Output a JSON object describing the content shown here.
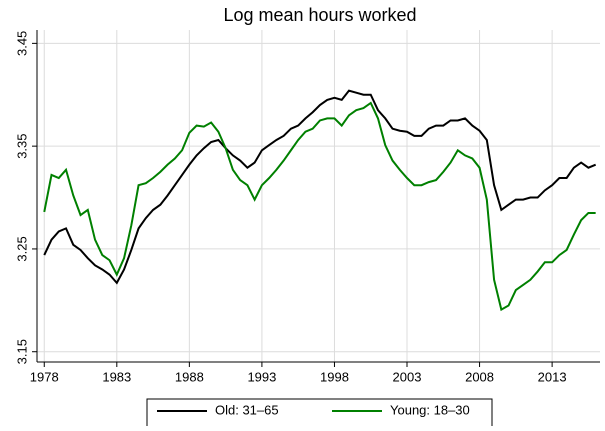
{
  "chart_data": {
    "type": "line",
    "title": "Log mean hours worked",
    "x": [
      1978,
      1978.5,
      1979,
      1979.5,
      1980,
      1980.5,
      1981,
      1981.5,
      1982,
      1982.5,
      1983,
      1983.5,
      1984,
      1984.5,
      1985,
      1985.5,
      1986,
      1986.5,
      1987,
      1987.5,
      1988,
      1988.5,
      1989,
      1989.5,
      1990,
      1990.5,
      1991,
      1991.5,
      1992,
      1992.5,
      1993,
      1993.5,
      1994,
      1994.5,
      1995,
      1995.5,
      1996,
      1996.5,
      1997,
      1997.5,
      1998,
      1998.5,
      1999,
      1999.5,
      2000,
      2000.5,
      2001,
      2001.5,
      2002,
      2002.5,
      2003,
      2003.5,
      2004,
      2004.5,
      2005,
      2005.5,
      2006,
      2006.5,
      2007,
      2007.5,
      2008,
      2008.5,
      2009,
      2009.5,
      2010,
      2010.5,
      2011,
      2011.5,
      2012,
      2012.5,
      2013,
      2013.5,
      2014,
      2014.5,
      2015,
      2015.5,
      2016
    ],
    "series": [
      {
        "name": "Old: 31–65",
        "color": "#000000",
        "values": [
          3.244,
          3.259,
          3.267,
          3.27,
          3.254,
          3.249,
          3.241,
          3.234,
          3.23,
          3.225,
          3.217,
          3.23,
          3.249,
          3.27,
          3.28,
          3.288,
          3.293,
          3.302,
          3.312,
          3.322,
          3.332,
          3.341,
          3.348,
          3.354,
          3.356,
          3.348,
          3.341,
          3.336,
          3.329,
          3.334,
          3.346,
          3.351,
          3.356,
          3.36,
          3.367,
          3.37,
          3.377,
          3.383,
          3.39,
          3.395,
          3.397,
          3.395,
          3.404,
          3.402,
          3.4,
          3.4,
          3.385,
          3.377,
          3.367,
          3.365,
          3.364,
          3.36,
          3.36,
          3.367,
          3.37,
          3.37,
          3.375,
          3.375,
          3.377,
          3.37,
          3.365,
          3.356,
          3.312,
          3.288,
          3.293,
          3.298,
          3.298,
          3.3,
          3.3,
          3.307,
          3.312,
          3.319,
          3.319,
          3.329,
          3.334,
          3.329,
          3.332
        ]
      },
      {
        "name": "Young: 18–30",
        "color": "#008000",
        "values": [
          3.286,
          3.322,
          3.319,
          3.327,
          3.302,
          3.283,
          3.288,
          3.259,
          3.244,
          3.239,
          3.225,
          3.241,
          3.273,
          3.312,
          3.314,
          3.319,
          3.325,
          3.332,
          3.338,
          3.346,
          3.363,
          3.37,
          3.369,
          3.373,
          3.364,
          3.348,
          3.327,
          3.317,
          3.312,
          3.298,
          3.312,
          3.319,
          3.327,
          3.336,
          3.346,
          3.356,
          3.364,
          3.367,
          3.375,
          3.377,
          3.377,
          3.37,
          3.38,
          3.385,
          3.387,
          3.392,
          3.377,
          3.351,
          3.336,
          3.327,
          3.319,
          3.312,
          3.312,
          3.315,
          3.317,
          3.325,
          3.334,
          3.346,
          3.341,
          3.338,
          3.329,
          3.298,
          3.22,
          3.191,
          3.195,
          3.21,
          3.215,
          3.22,
          3.228,
          3.237,
          3.237,
          3.244,
          3.249,
          3.264,
          3.278,
          3.285,
          3.285
        ]
      }
    ],
    "xlim": [
      1977.5,
      2016.3
    ],
    "xticks": [
      1978,
      1983,
      1988,
      1993,
      1998,
      2003,
      2008,
      2013
    ],
    "ylim": [
      3.14,
      3.463
    ],
    "yticks": [
      3.15,
      3.25,
      3.35,
      3.45
    ],
    "grid": true,
    "legend": "bottom"
  }
}
